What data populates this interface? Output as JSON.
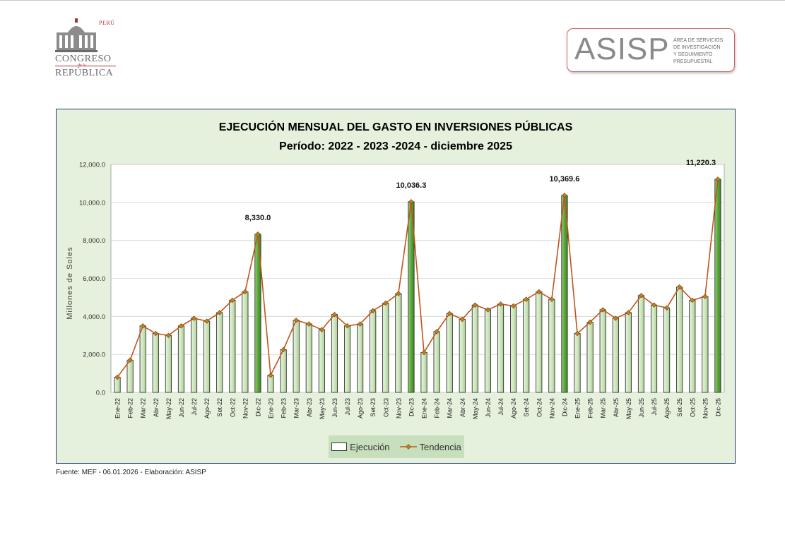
{
  "header": {
    "congreso": {
      "peru": "PERÚ",
      "line1": "CONGRESO",
      "line2": "de la",
      "line3": "REPÚBLICA"
    },
    "asisp": {
      "name": "ASISP",
      "description": [
        "ÁREA DE SERVICIOS",
        "DE INVESTIGACIÓN",
        "Y SEGUIMIENTO",
        "PRESUPUESTAL"
      ]
    }
  },
  "chart_data": {
    "type": "bar",
    "title": "EJECUCIÓN MENSUAL DEL GASTO EN INVERSIONES PÚBLICAS",
    "subtitle": "Período: 2022 - 2023 -2024 - diciembre 2025",
    "xlabel": "",
    "ylabel": "Millones de Soles",
    "ylim": [
      0,
      12000
    ],
    "yticks": [
      "0.0",
      "2,000.0",
      "4,000.0",
      "6,000.0",
      "8,000.0",
      "10,000.0",
      "12,000.0"
    ],
    "categories": [
      "Ene-22",
      "Feb-22",
      "Mar-22",
      "Abr-22",
      "May-22",
      "Jun-22",
      "Jul-22",
      "Ago-22",
      "Set-22",
      "Oct-22",
      "Nov-22",
      "Dic-22",
      "Ene-23",
      "Feb-23",
      "Mar-23",
      "Abr-23",
      "May-23",
      "Jun-23",
      "Jul-23",
      "Ago-23",
      "Set-23",
      "Oct-23",
      "Nov-23",
      "Dic-23",
      "Ene-24",
      "Feb-24",
      "Mar-24",
      "Abr-24",
      "May-24",
      "Jun-24",
      "Jul-24",
      "Ago-24",
      "Set-24",
      "Oct-24",
      "Nov-24",
      "Dic-24",
      "Ene-25",
      "Feb-25",
      "Mar-25",
      "Abr-25",
      "May-25",
      "Jun-25",
      "Jul-25",
      "Ago-25",
      "Set-25",
      "Oct-25",
      "Nov-25",
      "Dic-25"
    ],
    "series": [
      {
        "name": "Ejecución",
        "type": "bar",
        "values": [
          800,
          1700,
          3500,
          3100,
          3000,
          3500,
          3900,
          3750,
          4200,
          4850,
          5300,
          8330.0,
          900,
          2250,
          3800,
          3600,
          3300,
          4100,
          3500,
          3600,
          4300,
          4700,
          5200,
          10036.3,
          2100,
          3200,
          4150,
          3850,
          4600,
          4350,
          4650,
          4550,
          4900,
          5300,
          4900,
          10369.6,
          3100,
          3700,
          4350,
          3900,
          4200,
          5100,
          4600,
          4450,
          5550,
          4850,
          5050,
          11220.3
        ]
      },
      {
        "name": "Tendencia",
        "type": "line"
      }
    ],
    "data_labels": [
      {
        "category": "Dic-22",
        "label": "8,330.0"
      },
      {
        "category": "Dic-23",
        "label": "10,036.3"
      },
      {
        "category": "Dic-24",
        "label": "10,369.6"
      },
      {
        "category": "Dic-25",
        "label": "11,220.3"
      }
    ],
    "legend": {
      "position": "bottom",
      "entries": [
        "Ejecución",
        "Tendencia"
      ]
    },
    "grid": true,
    "colors": {
      "bar_light": "#cfe6c2",
      "bar_mid": "#a9d08e",
      "bar_highlight": "#5aa63a",
      "line": "#c0561b",
      "marker": "#b8861b",
      "frame": "#1f3c6e",
      "background": "#e5f1dc"
    }
  },
  "footer": {
    "source": "Fuente: MEF - 06.01.2026 - Elaboración: ASISP"
  }
}
